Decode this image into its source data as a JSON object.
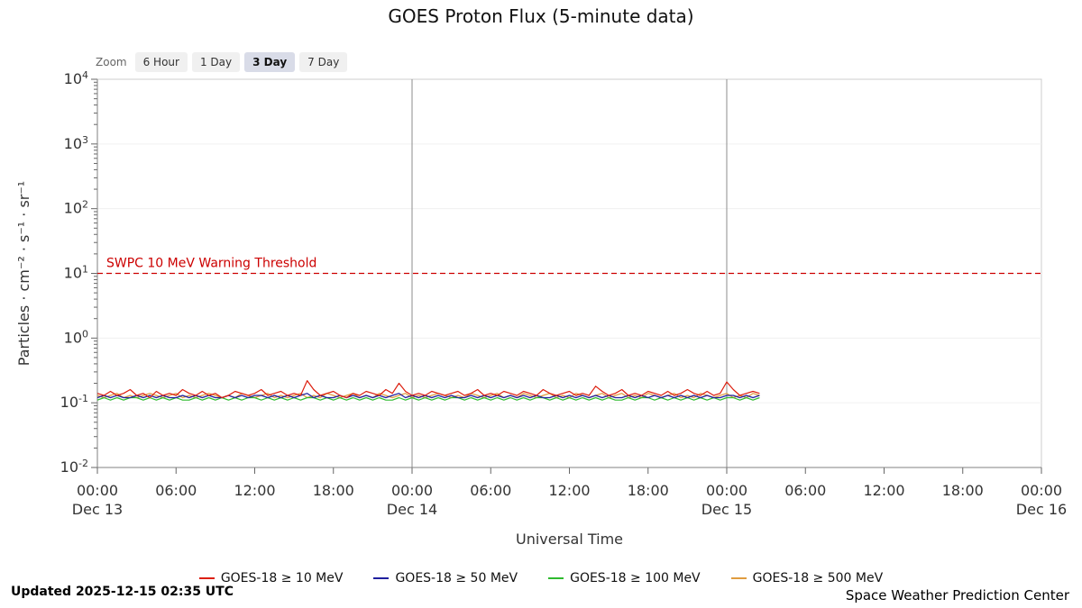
{
  "title": "GOES Proton Flux (5-minute data)",
  "toolbar": {
    "zoom_label": "Zoom",
    "buttons": [
      {
        "label": "6 Hour",
        "selected": false
      },
      {
        "label": "1 Day",
        "selected": false
      },
      {
        "label": "3 Day",
        "selected": true
      },
      {
        "label": "7 Day",
        "selected": false
      }
    ]
  },
  "footer": {
    "updated": "Updated 2025-12-15 02:35 UTC",
    "credit": "Space Weather Prediction Center"
  },
  "colors": {
    "threshold": "#cc0000",
    "plot_border": "#cccccc",
    "axis_line": "#808080",
    "tick": "#666666",
    "day_gridline": "#8c8c8c",
    "decade_gridline": "#f0f0f0"
  },
  "chart_data": {
    "type": "line",
    "title": "GOES Proton Flux (5-minute data)",
    "xlabel": "Universal Time",
    "ylabel": "Particles · cm⁻² · s⁻¹ · sr⁻¹",
    "y_scale": "log",
    "ylim": [
      0.01,
      10000
    ],
    "x_range_hours": [
      0,
      72
    ],
    "x_start_date": "Dec 13",
    "sample_step_hours": 0.5,
    "x_ticks": [
      {
        "hours": 0,
        "label": "00:00",
        "date": "Dec 13"
      },
      {
        "hours": 6,
        "label": "06:00"
      },
      {
        "hours": 12,
        "label": "12:00"
      },
      {
        "hours": 18,
        "label": "18:00"
      },
      {
        "hours": 24,
        "label": "00:00",
        "date": "Dec 14"
      },
      {
        "hours": 30,
        "label": "06:00"
      },
      {
        "hours": 36,
        "label": "12:00"
      },
      {
        "hours": 42,
        "label": "18:00"
      },
      {
        "hours": 48,
        "label": "00:00",
        "date": "Dec 15"
      },
      {
        "hours": 54,
        "label": "06:00"
      },
      {
        "hours": 60,
        "label": "12:00"
      },
      {
        "hours": 66,
        "label": "18:00"
      },
      {
        "hours": 72,
        "label": "00:00",
        "date": "Dec 16"
      }
    ],
    "y_ticks": [
      {
        "base": "10",
        "exp": "4"
      },
      {
        "base": "10",
        "exp": "3"
      },
      {
        "base": "10",
        "exp": "2"
      },
      {
        "base": "10",
        "exp": "1"
      },
      {
        "base": "10",
        "exp": "0"
      },
      {
        "base": "10",
        "exp": "-1"
      },
      {
        "base": "10",
        "exp": "-2"
      }
    ],
    "day_gridlines_hours": [
      24,
      48
    ],
    "threshold": {
      "value": 10,
      "label": "SWPC 10 MeV Warning Threshold"
    },
    "series": [
      {
        "name": "GOES-18 ≥ 10 MeV",
        "color": "#dc1f0f",
        "values": [
          0.14,
          0.13,
          0.15,
          0.13,
          0.14,
          0.16,
          0.13,
          0.14,
          0.12,
          0.15,
          0.13,
          0.14,
          0.13,
          0.16,
          0.14,
          0.13,
          0.15,
          0.13,
          0.14,
          0.12,
          0.13,
          0.15,
          0.14,
          0.13,
          0.14,
          0.16,
          0.13,
          0.14,
          0.15,
          0.13,
          0.14,
          0.13,
          0.22,
          0.16,
          0.13,
          0.14,
          0.15,
          0.13,
          0.12,
          0.14,
          0.13,
          0.15,
          0.14,
          0.13,
          0.16,
          0.14,
          0.2,
          0.15,
          0.13,
          0.14,
          0.13,
          0.15,
          0.14,
          0.13,
          0.14,
          0.15,
          0.13,
          0.14,
          0.16,
          0.13,
          0.14,
          0.13,
          0.15,
          0.14,
          0.13,
          0.15,
          0.14,
          0.13,
          0.16,
          0.14,
          0.13,
          0.14,
          0.15,
          0.13,
          0.14,
          0.13,
          0.18,
          0.15,
          0.13,
          0.14,
          0.16,
          0.13,
          0.14,
          0.13,
          0.15,
          0.14,
          0.13,
          0.15,
          0.13,
          0.14,
          0.16,
          0.14,
          0.13,
          0.15,
          0.13,
          0.14,
          0.21,
          0.16,
          0.13,
          0.14,
          0.15,
          0.14
        ]
      },
      {
        "name": "GOES-18 ≥ 50 MeV",
        "color": "#1f1f9e",
        "values": [
          0.12,
          0.13,
          0.12,
          0.13,
          0.12,
          0.12,
          0.13,
          0.12,
          0.13,
          0.12,
          0.13,
          0.12,
          0.12,
          0.13,
          0.12,
          0.13,
          0.12,
          0.13,
          0.12,
          0.12,
          0.13,
          0.12,
          0.13,
          0.12,
          0.13,
          0.13,
          0.12,
          0.13,
          0.12,
          0.13,
          0.12,
          0.13,
          0.14,
          0.12,
          0.13,
          0.12,
          0.12,
          0.13,
          0.12,
          0.13,
          0.12,
          0.13,
          0.12,
          0.13,
          0.12,
          0.13,
          0.14,
          0.12,
          0.13,
          0.12,
          0.13,
          0.12,
          0.13,
          0.12,
          0.13,
          0.12,
          0.12,
          0.13,
          0.12,
          0.13,
          0.12,
          0.13,
          0.12,
          0.13,
          0.12,
          0.13,
          0.12,
          0.13,
          0.12,
          0.12,
          0.13,
          0.12,
          0.13,
          0.12,
          0.13,
          0.12,
          0.13,
          0.12,
          0.13,
          0.12,
          0.12,
          0.13,
          0.12,
          0.13,
          0.12,
          0.13,
          0.12,
          0.13,
          0.12,
          0.13,
          0.12,
          0.13,
          0.12,
          0.13,
          0.12,
          0.12,
          0.13,
          0.13,
          0.12,
          0.13,
          0.12,
          0.13
        ]
      },
      {
        "name": "GOES-18 ≥ 100 MeV",
        "color": "#2fba2f",
        "values": [
          0.11,
          0.12,
          0.11,
          0.12,
          0.11,
          0.12,
          0.12,
          0.11,
          0.12,
          0.11,
          0.12,
          0.11,
          0.12,
          0.11,
          0.11,
          0.12,
          0.11,
          0.12,
          0.11,
          0.12,
          0.11,
          0.12,
          0.11,
          0.12,
          0.12,
          0.11,
          0.12,
          0.11,
          0.12,
          0.11,
          0.12,
          0.11,
          0.12,
          0.12,
          0.11,
          0.12,
          0.11,
          0.12,
          0.11,
          0.12,
          0.11,
          0.12,
          0.11,
          0.12,
          0.11,
          0.11,
          0.12,
          0.11,
          0.12,
          0.11,
          0.12,
          0.11,
          0.12,
          0.11,
          0.12,
          0.12,
          0.11,
          0.12,
          0.11,
          0.12,
          0.11,
          0.12,
          0.11,
          0.12,
          0.11,
          0.12,
          0.11,
          0.12,
          0.12,
          0.11,
          0.12,
          0.11,
          0.12,
          0.11,
          0.12,
          0.11,
          0.12,
          0.11,
          0.12,
          0.11,
          0.11,
          0.12,
          0.11,
          0.12,
          0.12,
          0.11,
          0.12,
          0.11,
          0.12,
          0.11,
          0.12,
          0.11,
          0.12,
          0.11,
          0.12,
          0.11,
          0.12,
          0.12,
          0.11,
          0.12,
          0.11,
          0.12
        ]
      },
      {
        "name": "GOES-18 ≥ 500 MeV",
        "color": "#e09c3f",
        "values": [
          0.13,
          0.12,
          0.13,
          0.14,
          0.12,
          0.13,
          0.12,
          0.13,
          0.14,
          0.13,
          0.12,
          0.13,
          0.14,
          0.12,
          0.13,
          0.12,
          0.13,
          0.14,
          0.13,
          0.12,
          0.13,
          0.12,
          0.14,
          0.13,
          0.12,
          0.13,
          0.14,
          0.12,
          0.13,
          0.12,
          0.13,
          0.14,
          0.12,
          0.13,
          0.12,
          0.14,
          0.13,
          0.12,
          0.13,
          0.14,
          0.12,
          0.13,
          0.12,
          0.14,
          0.13,
          0.12,
          0.13,
          0.14,
          0.12,
          0.13,
          0.12,
          0.13,
          0.14,
          0.13,
          0.12,
          0.13,
          0.12,
          0.14,
          0.13,
          0.12,
          0.13,
          0.14,
          0.12,
          0.13,
          0.12,
          0.14,
          0.13,
          0.12,
          0.13,
          0.14,
          0.12,
          0.13,
          0.12,
          0.14,
          0.13,
          0.12,
          0.13,
          0.14,
          0.12,
          0.13,
          0.14,
          0.12,
          0.13,
          0.12,
          0.14,
          0.13,
          0.12,
          0.13,
          0.14,
          0.12,
          0.13,
          0.12,
          0.14,
          0.13,
          0.12,
          0.13,
          0.14,
          0.12,
          0.13,
          0.12,
          0.14,
          0.13
        ]
      }
    ]
  }
}
